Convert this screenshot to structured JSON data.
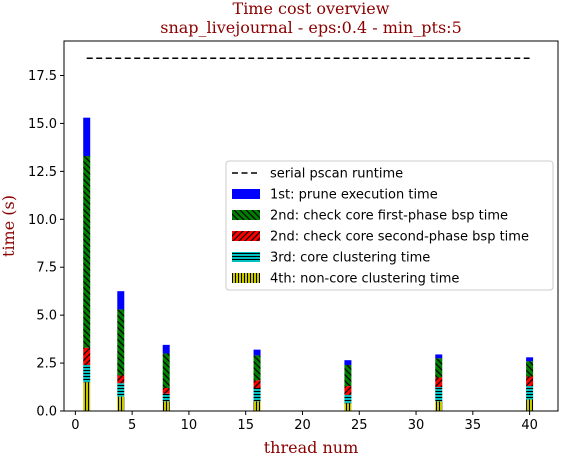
{
  "chart_data": {
    "type": "bar",
    "stacked": true,
    "title": "Time cost overview",
    "subtitle": "snap_livejournal - eps:0.4 - min_pts:5",
    "xlabel": "thread num",
    "ylabel": "time (s)",
    "xlim": [
      -1,
      42.5
    ],
    "ylim": [
      0,
      19.3
    ],
    "x_ticks": [
      "0",
      "5",
      "10",
      "15",
      "20",
      "25",
      "30",
      "35",
      "40"
    ],
    "y_ticks": [
      "0.0",
      "2.5",
      "5.0",
      "7.5",
      "10.0",
      "12.5",
      "15.0",
      "17.5"
    ],
    "legend_position": "center-right",
    "x": [
      1,
      4,
      8,
      16,
      24,
      32,
      40
    ],
    "reference_line": {
      "name": "serial pscan runtime",
      "value": 18.4,
      "color": "#000000",
      "style": "dashed"
    },
    "series": [
      {
        "name": "4th: non-core clustering time",
        "color": "#c8c800",
        "hatch": "vertical",
        "values": [
          1.5,
          0.75,
          0.5,
          0.5,
          0.4,
          0.5,
          0.6
        ]
      },
      {
        "name": "3rd: core clustering time",
        "color": "#00bfbf",
        "hatch": "horizontal",
        "values": [
          0.9,
          0.7,
          0.4,
          0.7,
          0.45,
          0.75,
          0.7
        ]
      },
      {
        "name": "2nd: check core second-phase bsp time",
        "color": "#ff0000",
        "hatch": "diagonal",
        "values": [
          0.9,
          0.4,
          0.3,
          0.4,
          0.45,
          0.5,
          0.5
        ]
      },
      {
        "name": "2nd: check core first-phase bsp time",
        "color": "#008000",
        "hatch": "backdiagonal",
        "values": [
          10.0,
          3.45,
          1.8,
          1.3,
          1.1,
          1.0,
          0.8
        ]
      },
      {
        "name": "1st: prune execution time",
        "color": "#0000ff",
        "hatch": "none",
        "values": [
          2.0,
          0.95,
          0.45,
          0.3,
          0.25,
          0.2,
          0.2
        ]
      }
    ],
    "legend_order": [
      "serial pscan runtime",
      "1st: prune execution time",
      "2nd: check core first-phase bsp time",
      "2nd: check core second-phase bsp time",
      "3rd: core clustering time",
      "4th: non-core clustering time"
    ]
  }
}
